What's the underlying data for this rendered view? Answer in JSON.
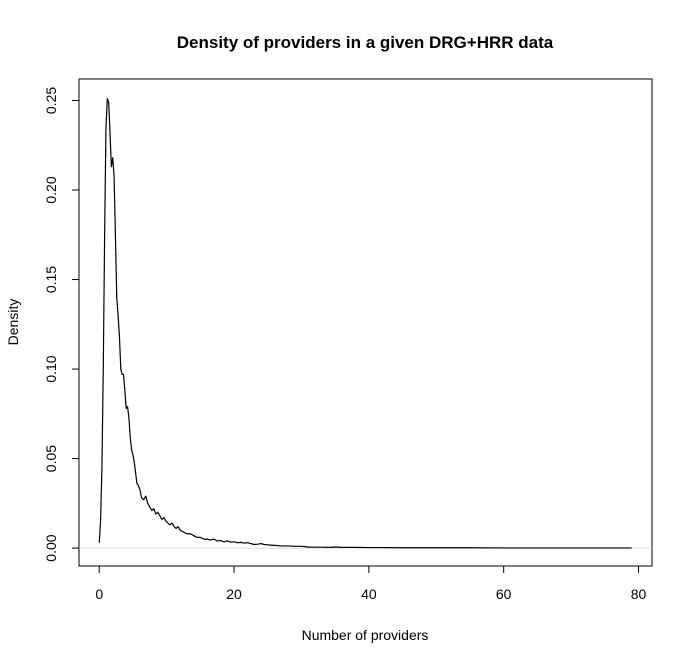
{
  "chart_data": {
    "type": "line",
    "title": "Density of providers in a given DRG+HRR data",
    "xlabel": "Number of providers",
    "ylabel": "Density",
    "xlim": [
      -3,
      82
    ],
    "ylim": [
      -0.01,
      0.262
    ],
    "x_ticks": [
      0,
      20,
      40,
      60,
      80
    ],
    "x_tick_labels": [
      "0",
      "20",
      "40",
      "60",
      "80"
    ],
    "y_ticks": [
      0.0,
      0.05,
      0.1,
      0.15,
      0.2,
      0.25
    ],
    "y_tick_labels": [
      "0.00",
      "0.05",
      "0.10",
      "0.15",
      "0.20",
      "0.25"
    ],
    "grid": false,
    "baseline": 0,
    "series": [
      {
        "color": "#000000",
        "x": [
          0,
          0.2,
          0.4,
          0.6,
          0.8,
          1.0,
          1.2,
          1.4,
          1.6,
          1.8,
          2.0,
          2.2,
          2.4,
          2.6,
          2.8,
          3.0,
          3.2,
          3.4,
          3.6,
          3.8,
          4.0,
          4.2,
          4.4,
          4.6,
          4.8,
          5.0,
          5.2,
          5.4,
          5.6,
          5.8,
          6.0,
          6.3,
          6.6,
          6.9,
          7.2,
          7.5,
          7.8,
          8.1,
          8.4,
          8.7,
          9.0,
          9.3,
          9.6,
          9.9,
          10.2,
          10.5,
          10.8,
          11.1,
          11.4,
          11.7,
          12.0,
          12.5,
          13.0,
          13.5,
          14.0,
          14.5,
          15.0,
          15.5,
          16.0,
          16.5,
          17.0,
          17.5,
          18.0,
          18.5,
          19.0,
          19.5,
          20.0,
          20.5,
          21.0,
          21.5,
          22.0,
          22.5,
          23.0,
          23.5,
          24.0,
          24.5,
          25.0,
          26.0,
          27.0,
          28.0,
          29.0,
          30.0,
          31.0,
          32.0,
          33.0,
          34.0,
          35.0,
          36.0,
          38.0,
          40.0,
          42.0,
          45.0,
          50.0,
          55.0,
          60.0,
          65.0,
          70.0,
          75.0,
          79.0
        ],
        "y": [
          0.003,
          0.015,
          0.045,
          0.1,
          0.175,
          0.235,
          0.251,
          0.249,
          0.232,
          0.213,
          0.218,
          0.208,
          0.175,
          0.14,
          0.13,
          0.118,
          0.1,
          0.097,
          0.097,
          0.088,
          0.078,
          0.079,
          0.073,
          0.062,
          0.055,
          0.052,
          0.048,
          0.042,
          0.036,
          0.035,
          0.033,
          0.028,
          0.027,
          0.029,
          0.025,
          0.023,
          0.021,
          0.022,
          0.019,
          0.02,
          0.018,
          0.016,
          0.017,
          0.015,
          0.014,
          0.013,
          0.014,
          0.012,
          0.011,
          0.012,
          0.01,
          0.009,
          0.008,
          0.008,
          0.007,
          0.006,
          0.006,
          0.005,
          0.005,
          0.0045,
          0.005,
          0.004,
          0.0042,
          0.0035,
          0.004,
          0.0033,
          0.0035,
          0.003,
          0.0032,
          0.0028,
          0.003,
          0.0025,
          0.002,
          0.0022,
          0.0025,
          0.002,
          0.0018,
          0.0015,
          0.0012,
          0.0012,
          0.001,
          0.001,
          0.0006,
          0.0005,
          0.0005,
          0.0004,
          0.0006,
          0.0004,
          0.0004,
          0.0003,
          0.0003,
          0.0002,
          0.0002,
          0.0002,
          0.0001,
          0.0001,
          0.0001,
          0.0001,
          0.0001
        ]
      }
    ]
  }
}
